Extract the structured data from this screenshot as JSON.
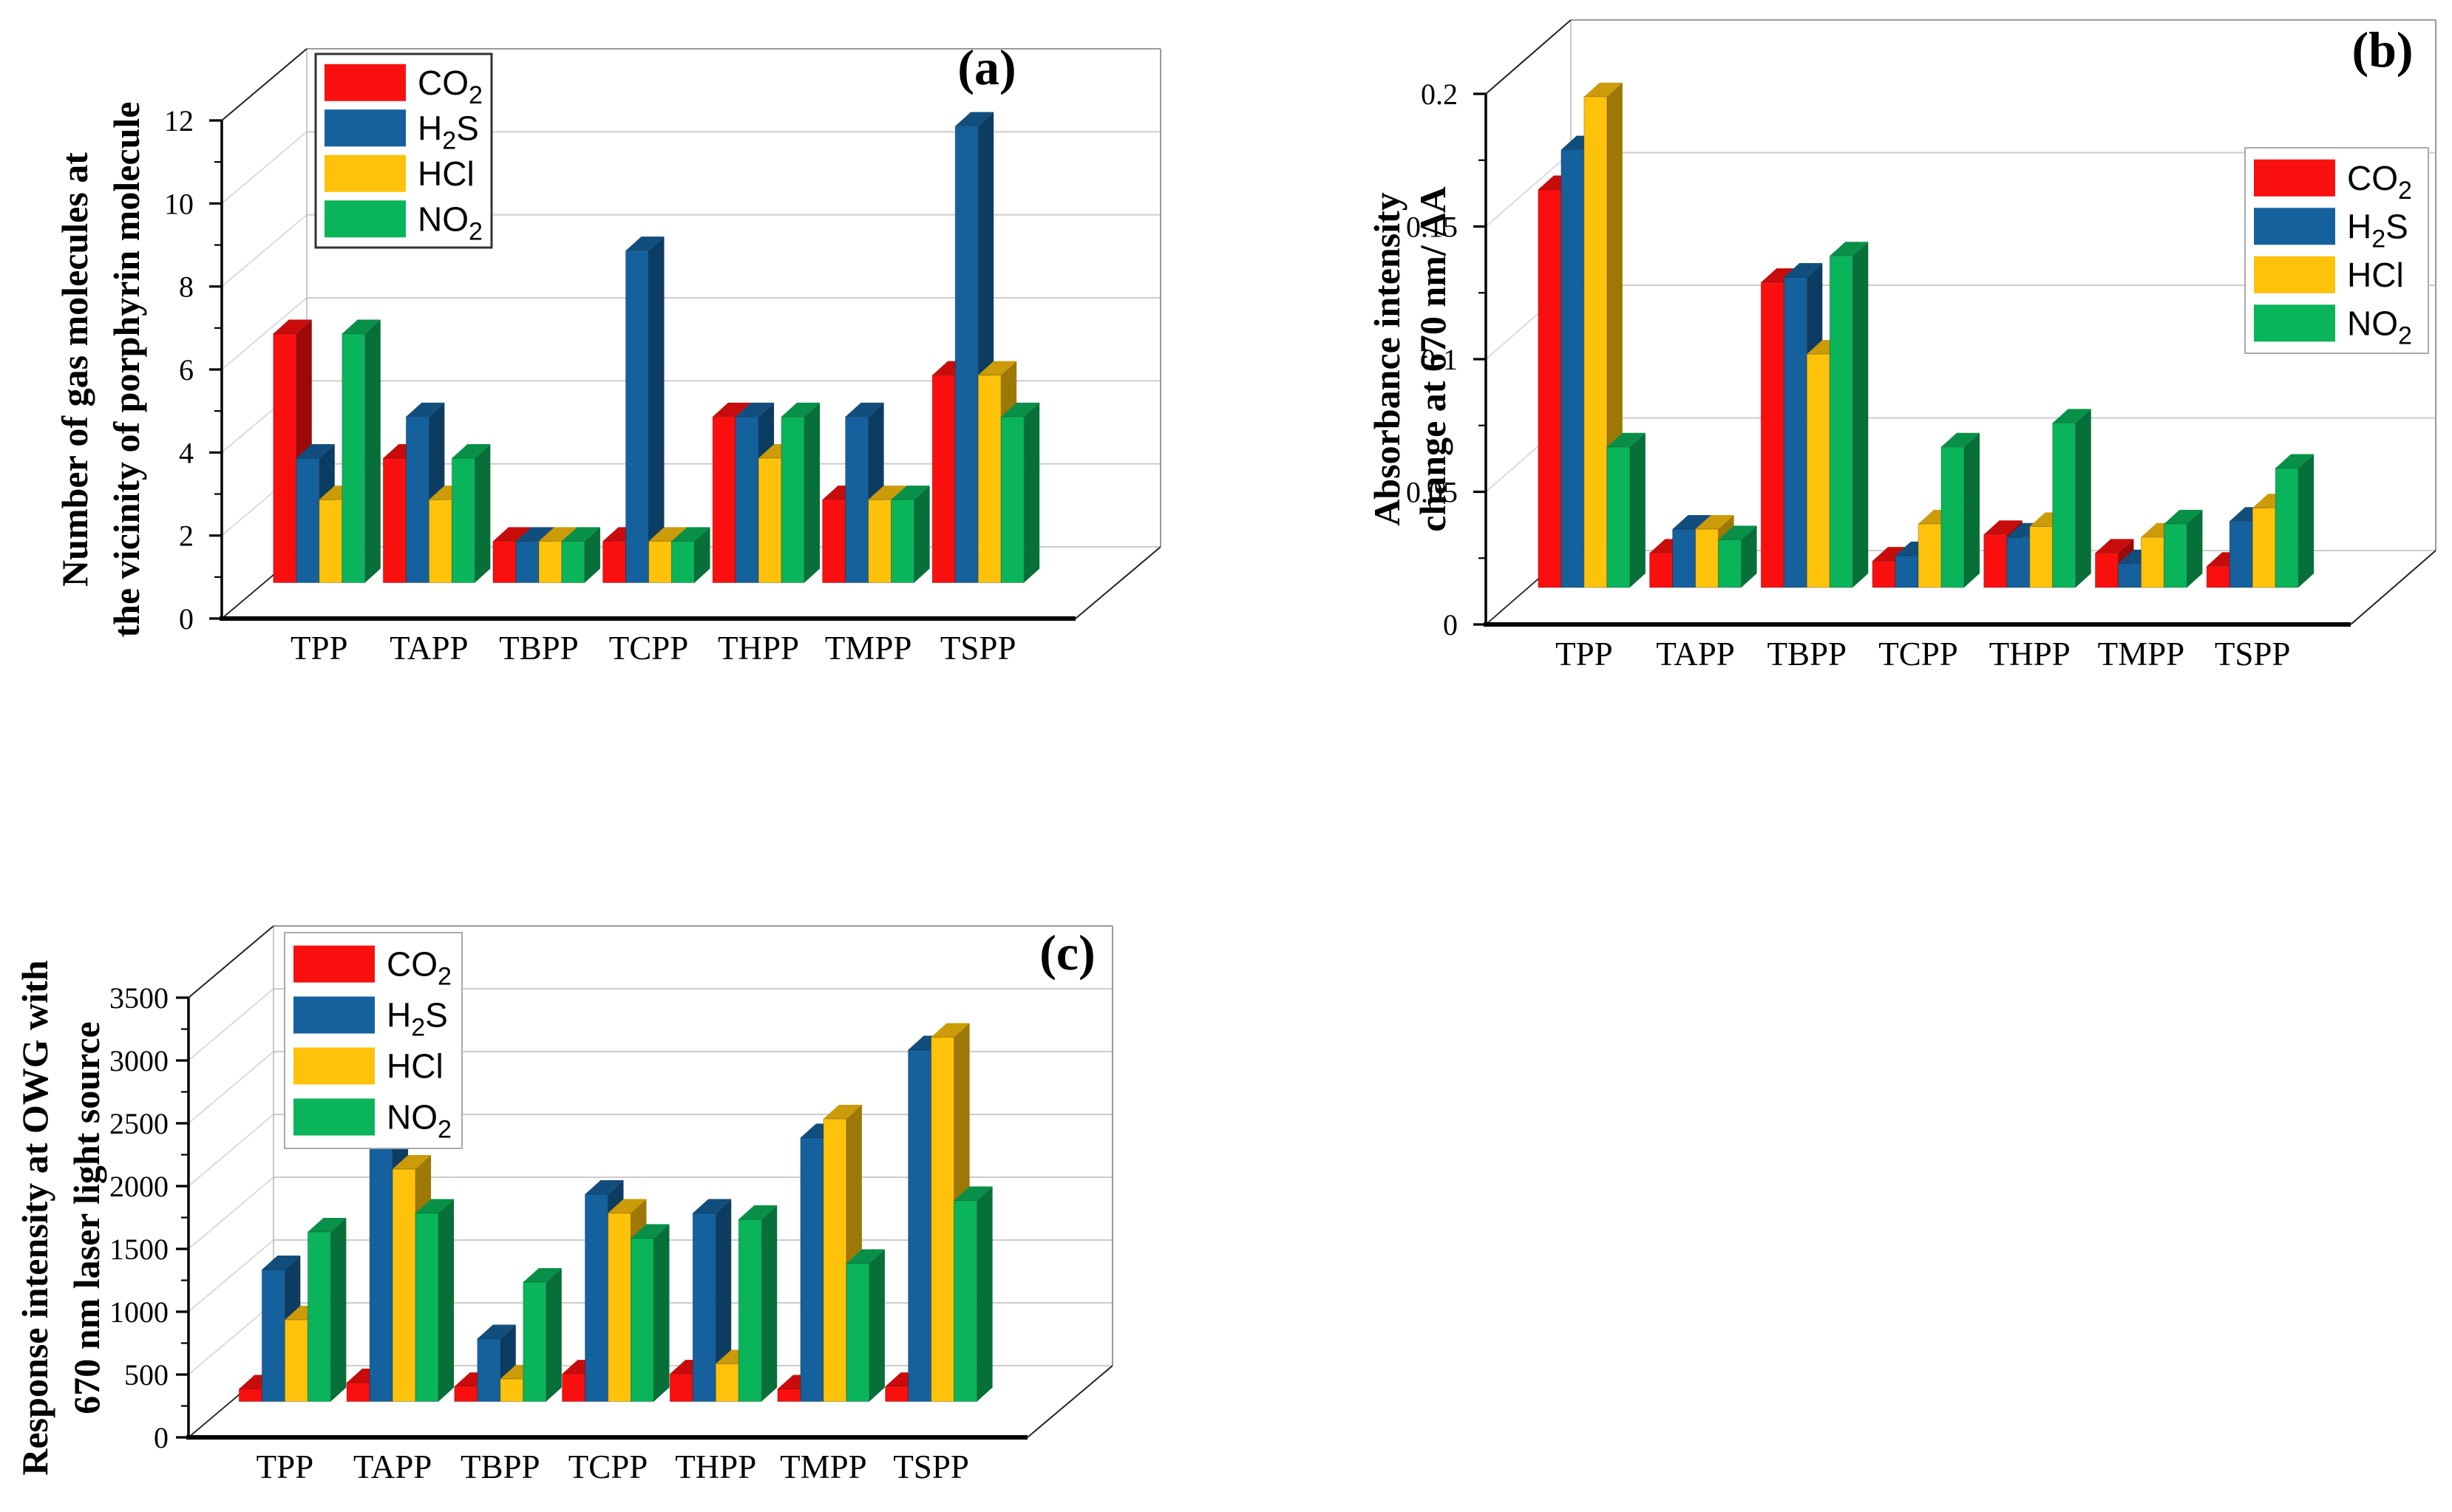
{
  "figure": {
    "background": "#ffffff",
    "grid_color": "#cccccc",
    "wall_edge_color": "#999999",
    "diagonal_color": "#222222",
    "axis_color": "#000000",
    "text_color": "#000000"
  },
  "chart_data": [
    {
      "id": "a",
      "type": "bar",
      "projection": "pseudo-3d",
      "panel_label": "(a)",
      "title": "",
      "ylabel_lines": [
        "Number of gas molecules at",
        "the vicinity of porphyrin molecule"
      ],
      "xlabel": "",
      "categories": [
        "TPP",
        "TAPP",
        "TBPP",
        "TCPP",
        "THPP",
        "TMPP",
        "TSPP"
      ],
      "ylim": [
        0,
        12
      ],
      "ytick_values": [
        0,
        2,
        4,
        6,
        8,
        10,
        12
      ],
      "yticks": [
        "0",
        "2",
        "4",
        "6",
        "8",
        "10",
        "12"
      ],
      "minor_tick_step": 1,
      "grid": true,
      "legend_position": "top-left",
      "series": [
        {
          "name": "CO2",
          "label_parts": [
            {
              "t": "CO"
            },
            {
              "t": "2",
              "sub": true
            }
          ],
          "color": "#fa0f0f",
          "values": [
            6,
            3,
            1,
            1,
            4,
            2,
            5
          ]
        },
        {
          "name": "H2S",
          "label_parts": [
            {
              "t": "H"
            },
            {
              "t": "2",
              "sub": true
            },
            {
              "t": "S"
            }
          ],
          "color": "#15619e",
          "values": [
            3,
            4,
            1,
            8,
            4,
            4,
            11
          ]
        },
        {
          "name": "HCl",
          "label_parts": [
            {
              "t": "HCl"
            }
          ],
          "color": "#fec20b",
          "values": [
            2,
            2,
            1,
            1,
            3,
            2,
            5
          ]
        },
        {
          "name": "NO2",
          "label_parts": [
            {
              "t": "NO"
            },
            {
              "t": "2",
              "sub": true
            }
          ],
          "color": "#0ab45a",
          "values": [
            6,
            3,
            1,
            1,
            4,
            2,
            4
          ]
        }
      ]
    },
    {
      "id": "b",
      "type": "bar",
      "projection": "pseudo-3d",
      "panel_label": "(b)",
      "title": "",
      "ylabel_lines": [
        "Absorbance intensity",
        "change at 670 nm/ ΔA"
      ],
      "xlabel": "",
      "categories": [
        "TPP",
        "TAPP",
        "TBPP",
        "TCPP",
        "THPP",
        "TMPP",
        "TSPP"
      ],
      "ylim": [
        0,
        0.2
      ],
      "ytick_values": [
        0,
        0.05,
        0.1,
        0.15,
        0.2
      ],
      "yticks": [
        "0",
        "0.05",
        "0.1",
        "0.15",
        "0.2"
      ],
      "minor_tick_step": 0.025,
      "grid": true,
      "legend_position": "right",
      "series": [
        {
          "name": "CO2",
          "label_parts": [
            {
              "t": "CO"
            },
            {
              "t": "2",
              "sub": true
            }
          ],
          "color": "#fa0f0f",
          "values": [
            0.15,
            0.013,
            0.115,
            0.01,
            0.02,
            0.013,
            0.008
          ]
        },
        {
          "name": "H2S",
          "label_parts": [
            {
              "t": "H"
            },
            {
              "t": "2",
              "sub": true
            },
            {
              "t": "S"
            }
          ],
          "color": "#15619e",
          "values": [
            0.165,
            0.022,
            0.117,
            0.012,
            0.019,
            0.009,
            0.025
          ]
        },
        {
          "name": "HCl",
          "label_parts": [
            {
              "t": "HCl"
            }
          ],
          "color": "#fec20b",
          "values": [
            0.185,
            0.022,
            0.088,
            0.024,
            0.023,
            0.019,
            0.03
          ]
        },
        {
          "name": "NO2",
          "label_parts": [
            {
              "t": "NO"
            },
            {
              "t": "2",
              "sub": true
            }
          ],
          "color": "#0ab45a",
          "values": [
            0.053,
            0.018,
            0.125,
            0.053,
            0.062,
            0.024,
            0.045
          ]
        }
      ]
    },
    {
      "id": "c",
      "type": "bar",
      "projection": "pseudo-3d",
      "panel_label": "(c)",
      "title": "",
      "ylabel_lines": [
        "Response intensity at OWG with",
        "670 nm laser light source"
      ],
      "xlabel": "",
      "categories": [
        "TPP",
        "TAPP",
        "TBPP",
        "TCPP",
        "THPP",
        "TMPP",
        "TSPP"
      ],
      "ylim": [
        0,
        3500
      ],
      "ytick_values": [
        0,
        500,
        1000,
        1500,
        2000,
        2500,
        3000,
        3500
      ],
      "yticks": [
        "0",
        "500",
        "1000",
        "1500",
        "2000",
        "2500",
        "3000",
        "3500"
      ],
      "minor_tick_step": 250,
      "grid": true,
      "legend_position": "top-left",
      "series": [
        {
          "name": "CO2",
          "label_parts": [
            {
              "t": "CO"
            },
            {
              "t": "2",
              "sub": true
            }
          ],
          "color": "#fa0f0f",
          "values": [
            100,
            150,
            120,
            220,
            220,
            100,
            120
          ]
        },
        {
          "name": "H2S",
          "label_parts": [
            {
              "t": "H"
            },
            {
              "t": "2",
              "sub": true
            },
            {
              "t": "S"
            }
          ],
          "color": "#15619e",
          "values": [
            1050,
            2250,
            500,
            1650,
            1500,
            2100,
            2800
          ]
        },
        {
          "name": "HCl",
          "label_parts": [
            {
              "t": "HCl"
            }
          ],
          "color": "#fec20b",
          "values": [
            650,
            1850,
            180,
            1500,
            300,
            2250,
            2900
          ]
        },
        {
          "name": "NO2",
          "label_parts": [
            {
              "t": "NO"
            },
            {
              "t": "2",
              "sub": true
            }
          ],
          "color": "#0ab45a",
          "values": [
            1350,
            1500,
            950,
            1300,
            1450,
            1100,
            1600
          ]
        }
      ]
    }
  ]
}
